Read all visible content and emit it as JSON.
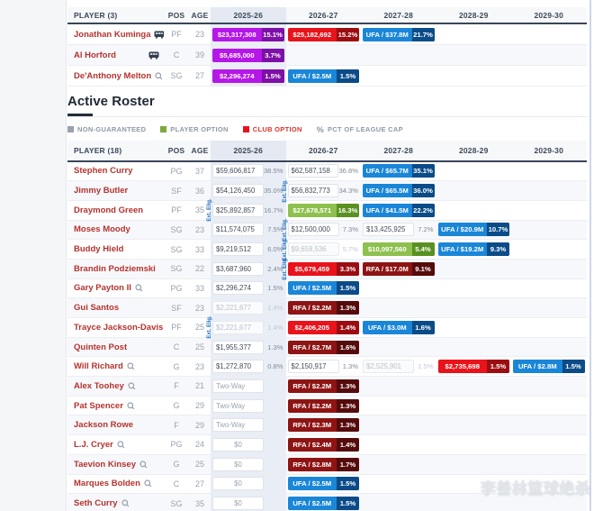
{
  "section_title": "Active Roster",
  "watermark": "李善林篮球绝杀",
  "years": [
    "2025-26",
    "2026-27",
    "2027-28",
    "2028-29",
    "2029-30"
  ],
  "legend": [
    {
      "label": "NON-GUARANTEED",
      "color": "#9aa1ac",
      "label_color": "#8f99a6"
    },
    {
      "label": "PLAYER OPTION",
      "color": "#7aa93c",
      "label_color": "#8f99a6"
    },
    {
      "label": "CLUB OPTION",
      "color": "#e8131b",
      "label_color": "#d9342b"
    },
    {
      "label": "PCT OF LEAGUE CAP",
      "icon": "percent-icon",
      "label_color": "#8f99a6"
    }
  ],
  "colors": {
    "magenta": {
      "bg": "#b517e8",
      "pct": "#7d10a6"
    },
    "red": {
      "bg": "#e8131b",
      "pct": "#9c0d12"
    },
    "maroon": {
      "bg": "#8e1414",
      "pct": "#550b0b"
    },
    "blue": {
      "bg": "#1a86d8",
      "pct": "#0a4b88"
    },
    "green": {
      "bg": "#8ec04e",
      "pct": "#5a9021"
    },
    "column_highlight": "#e9edf6",
    "player_name": "#b5322d",
    "ext_label": "#1c6fbf"
  },
  "ext_label_text": "Ext. Elig.",
  "top_table": {
    "header": {
      "player": "PLAYER (3)",
      "pos": "POS",
      "age": "AGE"
    },
    "rows": [
      {
        "name": "Jonathan Kuminga",
        "note": false,
        "bus": true,
        "pos": "PF",
        "age": "23",
        "ext": 0,
        "cells": [
          {
            "t": "pill",
            "c": "magenta",
            "v": "$23,317,308",
            "p": "15.1%"
          },
          {
            "t": "pill",
            "c": "red",
            "v": "$25,182,692",
            "p": "15.2%"
          },
          {
            "t": "pill",
            "c": "blue",
            "v": "UFA / $37.8M",
            "p": "21.7%"
          },
          null,
          null
        ]
      },
      {
        "name": "Al Horford",
        "note": false,
        "bus": true,
        "pos": "C",
        "age": "39",
        "ext": 0,
        "cells": [
          {
            "t": "pill",
            "c": "magenta",
            "v": "$5,685,000",
            "p": "3.7%"
          },
          null,
          null,
          null,
          null
        ]
      },
      {
        "name": "De'Anthony Melton",
        "note": true,
        "bus": true,
        "pos": "SG",
        "age": "27",
        "ext": 0,
        "cells": [
          {
            "t": "pill",
            "c": "magenta",
            "v": "$2,296,274",
            "p": "1.5%"
          },
          {
            "t": "pill",
            "c": "blue",
            "v": "UFA / $2.5M",
            "p": "1.5%"
          },
          null,
          null,
          null
        ]
      }
    ]
  },
  "roster_table": {
    "header": {
      "player": "PLAYER (18)",
      "pos": "POS",
      "age": "AGE"
    },
    "rows": [
      {
        "name": "Stephen Curry",
        "note": false,
        "bus": false,
        "pos": "PG",
        "age": "37",
        "ext": 0,
        "cells": [
          {
            "t": "box",
            "v": "$59,606,817",
            "p": "38.5%"
          },
          {
            "t": "box",
            "v": "$62,587,158",
            "p": "36.8%"
          },
          {
            "t": "pill",
            "c": "blue",
            "v": "UFA / $65.7M",
            "p": "35.1%"
          },
          null,
          null
        ]
      },
      {
        "name": "Jimmy Butler",
        "note": false,
        "bus": false,
        "pos": "SF",
        "age": "36",
        "ext": 2,
        "cells": [
          {
            "t": "box",
            "v": "$54,126,450",
            "p": "35.0%"
          },
          {
            "t": "box",
            "v": "$56,832,773",
            "p": "34.3%"
          },
          {
            "t": "pill",
            "c": "blue",
            "v": "UFA / $65.5M",
            "p": "36.0%"
          },
          null,
          null
        ]
      },
      {
        "name": "Draymond Green",
        "note": false,
        "bus": false,
        "pos": "PF",
        "age": "35",
        "ext": 1,
        "cells": [
          {
            "t": "box",
            "v": "$25,892,857",
            "p": "16.7%"
          },
          {
            "t": "pill",
            "c": "green",
            "v": "$27,678,571",
            "p": "16.3%"
          },
          {
            "t": "pill",
            "c": "blue",
            "v": "UFA / $41.5M",
            "p": "22.2%"
          },
          null,
          null
        ]
      },
      {
        "name": "Moses Moody",
        "note": false,
        "bus": false,
        "pos": "SG",
        "age": "23",
        "ext": 2,
        "cells": [
          {
            "t": "box",
            "v": "$11,574,075",
            "p": "7.5%"
          },
          {
            "t": "box",
            "v": "$12,500,000",
            "p": "7.3%"
          },
          {
            "t": "box",
            "v": "$13,425,925",
            "p": "7.2%"
          },
          {
            "t": "pill",
            "c": "blue",
            "v": "UFA / $20.9M",
            "p": "10.7%"
          },
          null
        ]
      },
      {
        "name": "Buddy Hield",
        "note": false,
        "bus": false,
        "pos": "SG",
        "age": "33",
        "ext": 2,
        "cells": [
          {
            "t": "box",
            "v": "$9,219,512",
            "p": "6.0%"
          },
          {
            "t": "gray",
            "v": "$9,658,536",
            "p": "5.7%"
          },
          {
            "t": "pill",
            "c": "green",
            "v": "$10,097,560",
            "p": "5.4%"
          },
          {
            "t": "pill",
            "c": "blue",
            "v": "UFA / $19.2M",
            "p": "9.3%"
          },
          null
        ]
      },
      {
        "name": "Brandin Podziemski",
        "note": false,
        "bus": false,
        "pos": "SG",
        "age": "22",
        "ext": 2,
        "cells": [
          {
            "t": "box",
            "v": "$3,687,960",
            "p": "2.4%"
          },
          {
            "t": "pill",
            "c": "red",
            "v": "$5,679,459",
            "p": "3.3%"
          },
          {
            "t": "pill",
            "c": "maroon",
            "v": "RFA / $17.0M",
            "p": "9.1%"
          },
          null,
          null
        ]
      },
      {
        "name": "Gary Payton II",
        "note": true,
        "bus": false,
        "pos": "PG",
        "age": "33",
        "ext": 0,
        "cells": [
          {
            "t": "box",
            "v": "$2,296,274",
            "p": "1.5%"
          },
          {
            "t": "pill",
            "c": "blue",
            "v": "UFA / $2.5M",
            "p": "1.5%"
          },
          null,
          null,
          null
        ]
      },
      {
        "name": "Gui Santos",
        "note": false,
        "bus": false,
        "pos": "SF",
        "age": "23",
        "ext": 0,
        "cells": [
          {
            "t": "gray",
            "v": "$2,221,677",
            "p": "1.4%"
          },
          {
            "t": "pill",
            "c": "maroon",
            "v": "RFA / $2.2M",
            "p": "1.3%"
          },
          null,
          null,
          null
        ]
      },
      {
        "name": "Trayce Jackson-Davis",
        "note": false,
        "bus": false,
        "pos": "PF",
        "age": "25",
        "ext": 1,
        "cells": [
          {
            "t": "gray",
            "v": "$2,221,677",
            "p": "1.4%"
          },
          {
            "t": "pill",
            "c": "red",
            "v": "$2,406,205",
            "p": "1.4%"
          },
          {
            "t": "pill",
            "c": "blue",
            "v": "UFA / $3.0M",
            "p": "1.6%"
          },
          null,
          null
        ]
      },
      {
        "name": "Quinten Post",
        "note": false,
        "bus": false,
        "pos": "C",
        "age": "25",
        "ext": 0,
        "cells": [
          {
            "t": "box",
            "v": "$1,955,377",
            "p": "1.3%"
          },
          {
            "t": "pill",
            "c": "maroon",
            "v": "RFA / $2.7M",
            "p": "1.6%"
          },
          null,
          null,
          null
        ]
      },
      {
        "name": "Will Richard",
        "note": true,
        "bus": false,
        "pos": "G",
        "age": "23",
        "ext": 0,
        "cells": [
          {
            "t": "box",
            "v": "$1,272,870",
            "p": "0.8%"
          },
          {
            "t": "box",
            "v": "$2,150,917",
            "p": "1.3%"
          },
          {
            "t": "gray",
            "v": "$2,525,901",
            "p": "1.5%"
          },
          {
            "t": "pill",
            "c": "red",
            "v": "$2,735,698",
            "p": "1.5%"
          },
          {
            "t": "pill",
            "c": "blue",
            "v": "UFA / $2.8M",
            "p": "1.5%"
          }
        ]
      },
      {
        "name": "Alex Toohey",
        "note": true,
        "bus": false,
        "pos": "F",
        "age": "21",
        "ext": 0,
        "cells": [
          {
            "t": "label",
            "v": "Two-Way"
          },
          {
            "t": "pill",
            "c": "maroon",
            "v": "RFA / $2.2M",
            "p": "1.3%"
          },
          null,
          null,
          null
        ]
      },
      {
        "name": "Pat Spencer",
        "note": true,
        "bus": false,
        "pos": "G",
        "age": "29",
        "ext": 0,
        "cells": [
          {
            "t": "label",
            "v": "Two-Way"
          },
          {
            "t": "pill",
            "c": "maroon",
            "v": "RFA / $2.2M",
            "p": "1.3%"
          },
          null,
          null,
          null
        ]
      },
      {
        "name": "Jackson Rowe",
        "note": false,
        "bus": false,
        "pos": "F",
        "age": "29",
        "ext": 0,
        "cells": [
          {
            "t": "label",
            "v": "Two-Way"
          },
          {
            "t": "pill",
            "c": "maroon",
            "v": "RFA / $2.3M",
            "p": "1.3%"
          },
          null,
          null,
          null
        ]
      },
      {
        "name": "L.J. Cryer",
        "note": true,
        "bus": false,
        "pos": "PG",
        "age": "24",
        "ext": 0,
        "cells": [
          {
            "t": "zero",
            "v": "$0"
          },
          {
            "t": "pill",
            "c": "maroon",
            "v": "RFA / $2.4M",
            "p": "1.4%"
          },
          null,
          null,
          null
        ]
      },
      {
        "name": "Taevion Kinsey",
        "note": true,
        "bus": false,
        "pos": "G",
        "age": "25",
        "ext": 0,
        "cells": [
          {
            "t": "zero",
            "v": "$0"
          },
          {
            "t": "pill",
            "c": "maroon",
            "v": "RFA / $2.8M",
            "p": "1.7%"
          },
          null,
          null,
          null
        ]
      },
      {
        "name": "Marques Bolden",
        "note": true,
        "bus": false,
        "pos": "C",
        "age": "27",
        "ext": 0,
        "cells": [
          {
            "t": "zero",
            "v": "$0"
          },
          {
            "t": "pill",
            "c": "blue",
            "v": "UFA / $2.5M",
            "p": "1.5%"
          },
          null,
          null,
          null
        ]
      },
      {
        "name": "Seth Curry",
        "note": true,
        "bus": false,
        "pos": "SG",
        "age": "35",
        "ext": 0,
        "cells": [
          {
            "t": "zero",
            "v": "$0"
          },
          {
            "t": "pill",
            "c": "blue",
            "v": "UFA / $2.5M",
            "p": "1.5%"
          },
          null,
          null,
          null
        ]
      }
    ]
  }
}
